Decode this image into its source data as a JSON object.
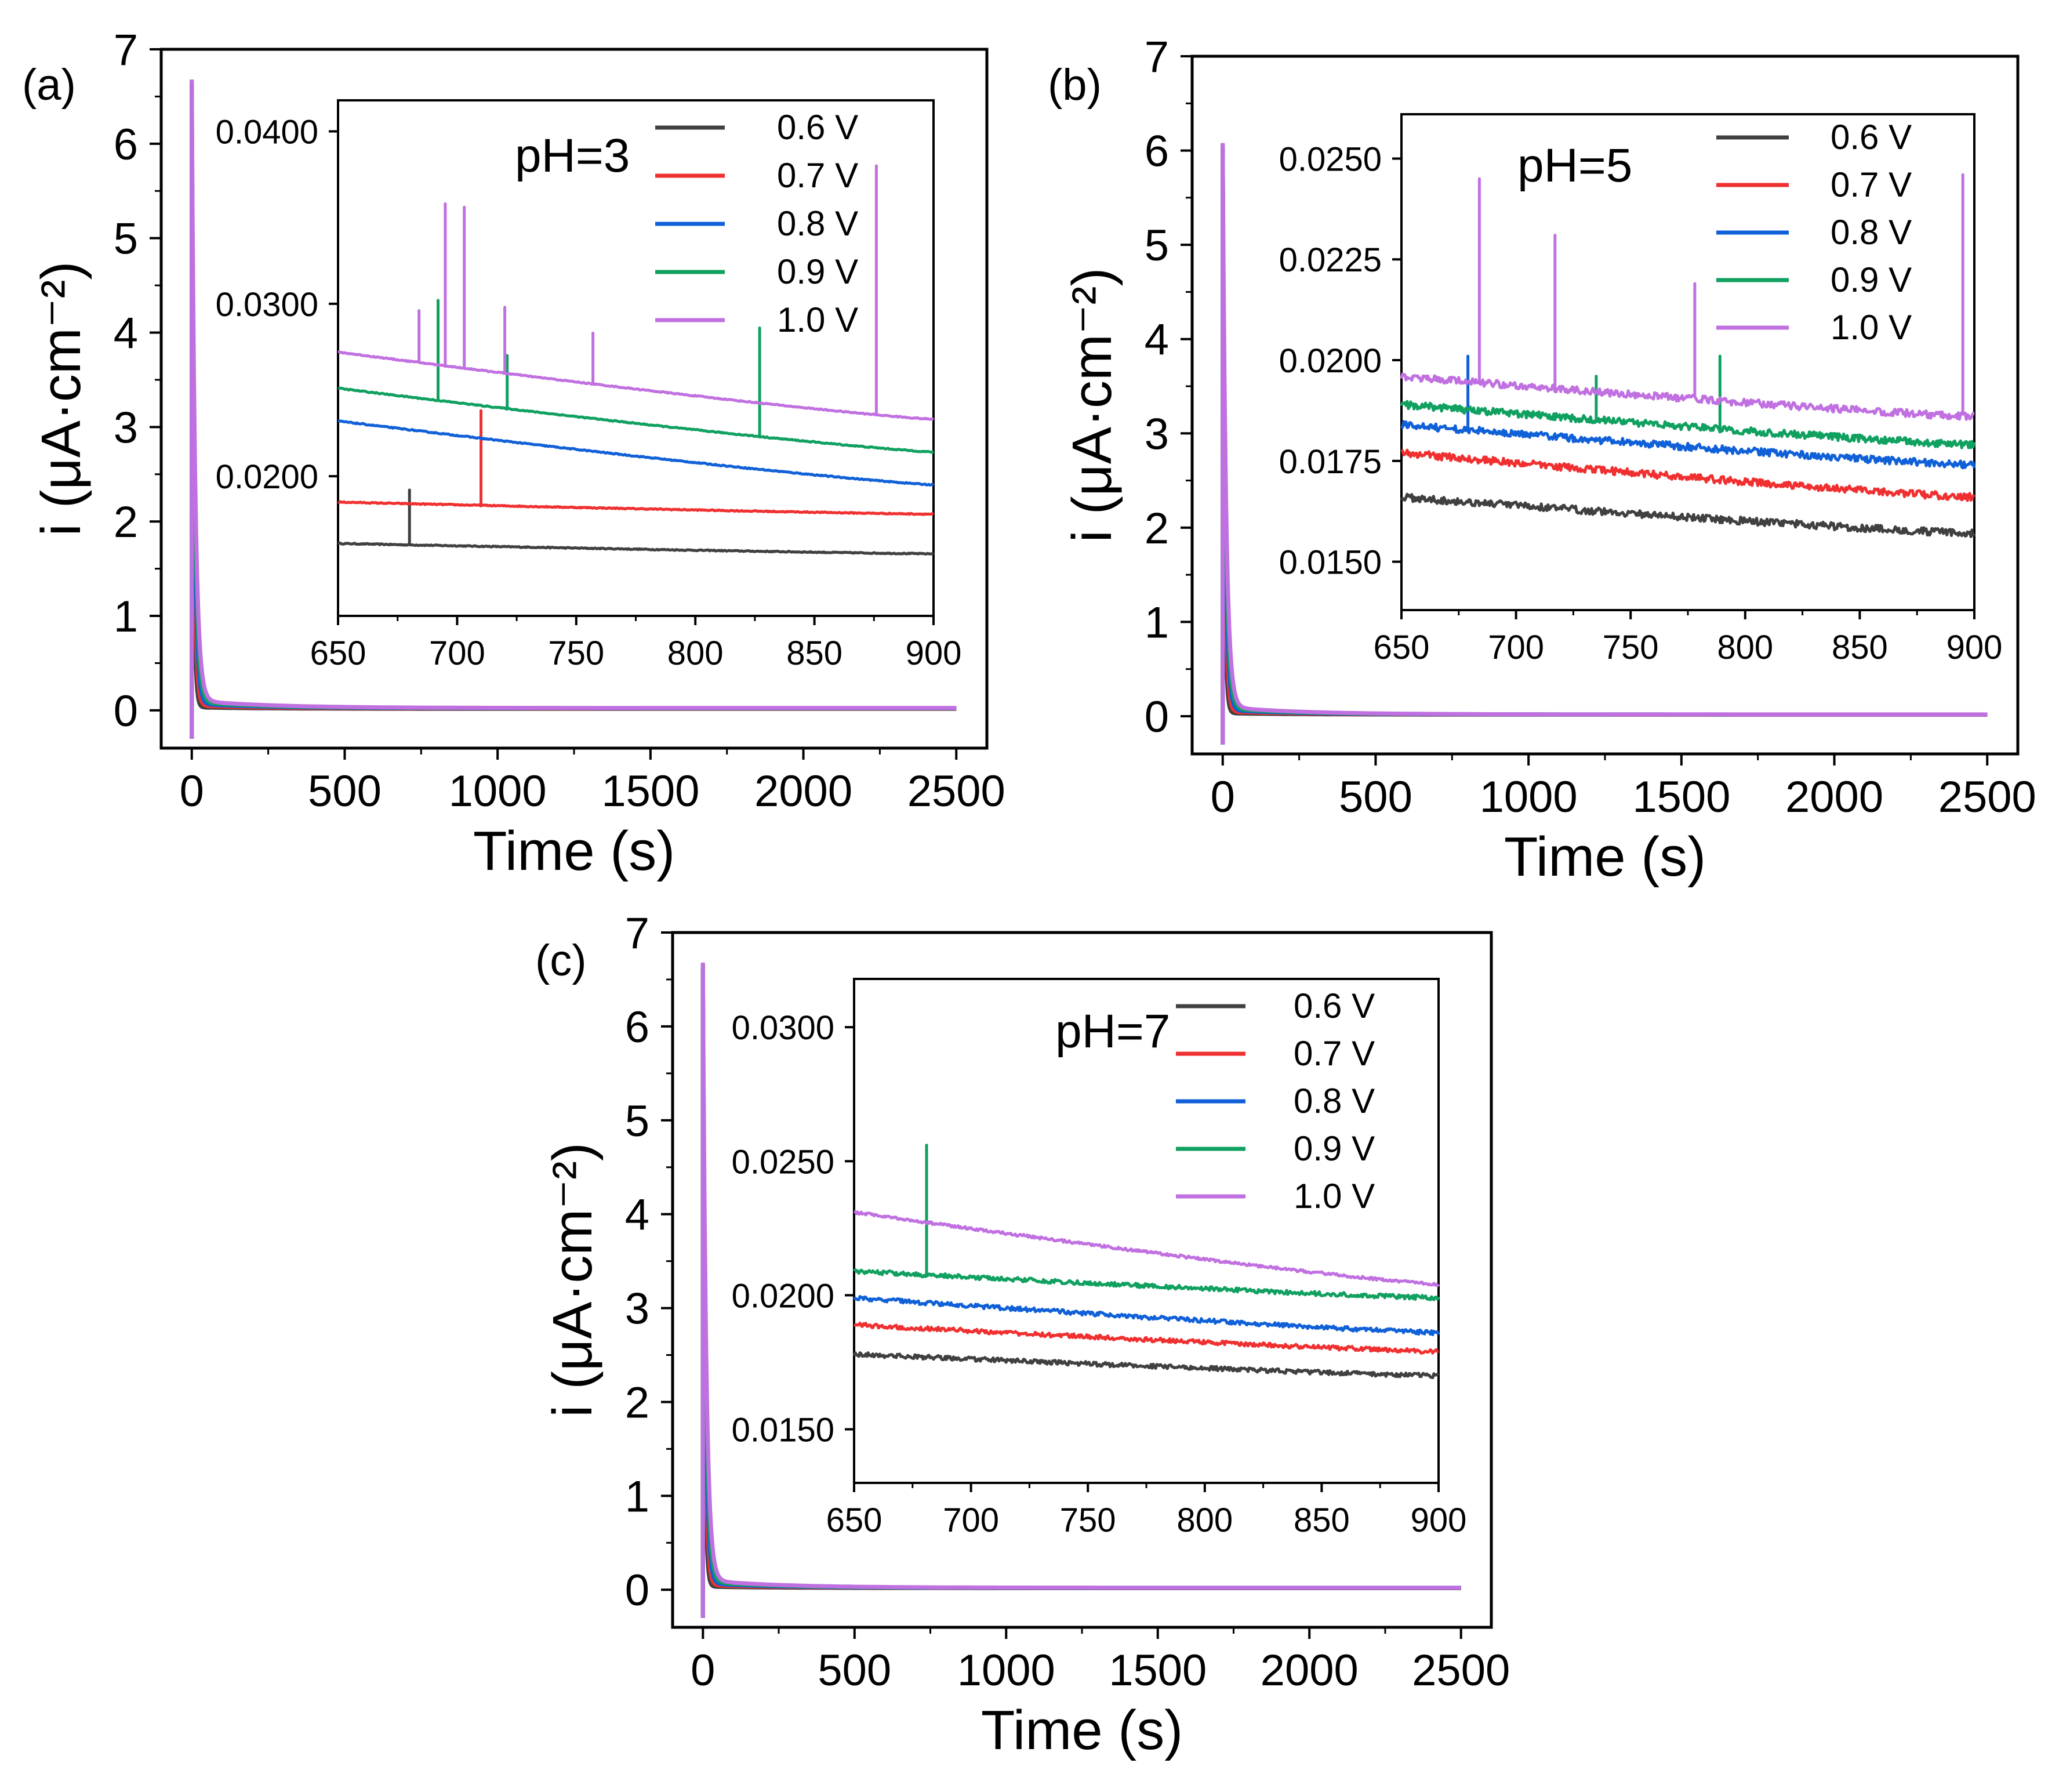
{
  "legend_colors": [
    "#404040",
    "#f03030",
    "#1060d8",
    "#10a060",
    "#c070e0"
  ],
  "chart_data": [
    {
      "panel": "(a)",
      "type": "line",
      "xlabel": "Time (s)",
      "ylabel": "i (μA·cm⁻²)",
      "xlim": [
        -100,
        2600
      ],
      "ylim": [
        -0.4,
        7
      ],
      "xticks": [
        "0",
        "500",
        "1000",
        "1500",
        "2000",
        "2500"
      ],
      "yticks": [
        "0",
        "1",
        "2",
        "3",
        "4",
        "5",
        "6",
        "7"
      ],
      "peak": 6.6,
      "inset": {
        "title": "pH=3",
        "xlim": [
          650,
          900
        ],
        "ylim": [
          0.0119,
          0.0418
        ],
        "xticks": [
          "650",
          "700",
          "750",
          "800",
          "850",
          "900"
        ],
        "yticks": [
          {
            "v": 0.02,
            "t": "0.0200"
          },
          {
            "v": 0.03,
            "t": "0.0300"
          },
          {
            "v": 0.04,
            "t": "0.0400"
          }
        ],
        "series": [
          {
            "name": "0.6 V",
            "start": 0.0161,
            "end": 0.0155,
            "noise": 3e-05,
            "spikes": [
              [
                680,
                0.0192
              ]
            ]
          },
          {
            "name": "0.7 V",
            "start": 0.0185,
            "end": 0.0178,
            "noise": 3e-05,
            "spikes": [
              [
                710,
                0.0238
              ]
            ]
          },
          {
            "name": "0.8 V",
            "start": 0.0232,
            "end": 0.0195,
            "noise": 3e-05,
            "spikes": []
          },
          {
            "name": "0.9 V",
            "start": 0.0251,
            "end": 0.0214,
            "noise": 3e-05,
            "spikes": [
              [
                692,
                0.0302
              ],
              [
                721,
                0.027
              ],
              [
                827,
                0.0286
              ]
            ]
          },
          {
            "name": "1.0 V",
            "start": 0.0272,
            "end": 0.0233,
            "noise": 3e-05,
            "spikes": [
              [
                684,
                0.0296
              ],
              [
                695,
                0.0358
              ],
              [
                703,
                0.0356
              ],
              [
                720,
                0.0298
              ],
              [
                757,
                0.0283
              ],
              [
                876,
                0.038
              ]
            ]
          }
        ]
      }
    },
    {
      "panel": "(b)",
      "type": "line",
      "xlabel": "Time (s)",
      "ylabel": "i (μA·cm⁻²)",
      "xlim": [
        -100,
        2600
      ],
      "ylim": [
        -0.4,
        7
      ],
      "xticks": [
        "0",
        "500",
        "1000",
        "1500",
        "2000",
        "2500"
      ],
      "yticks": [
        "0",
        "1",
        "2",
        "3",
        "4",
        "5",
        "6",
        "7"
      ],
      "peak": 6.0,
      "inset": {
        "title": "pH=5",
        "xlim": [
          650,
          900
        ],
        "ylim": [
          0.0138,
          0.0261
        ],
        "xticks": [
          "650",
          "700",
          "750",
          "800",
          "850",
          "900"
        ],
        "yticks": [
          {
            "v": 0.015,
            "t": "0.0150"
          },
          {
            "v": 0.0175,
            "t": "0.0175"
          },
          {
            "v": 0.02,
            "t": "0.0200"
          },
          {
            "v": 0.0225,
            "t": "0.0225"
          },
          {
            "v": 0.025,
            "t": "0.0250"
          }
        ],
        "series": [
          {
            "name": "0.6 V",
            "start": 0.0166,
            "end": 0.0157,
            "noise": 9e-05,
            "spikes": []
          },
          {
            "name": "0.7 V",
            "start": 0.0177,
            "end": 0.0166,
            "noise": 9e-05,
            "spikes": []
          },
          {
            "name": "0.8 V",
            "start": 0.0184,
            "end": 0.0174,
            "noise": 9e-05,
            "spikes": [
              [
                679,
                0.0201
              ]
            ]
          },
          {
            "name": "0.9 V",
            "start": 0.0189,
            "end": 0.0179,
            "noise": 9e-05,
            "spikes": [
              [
                735,
                0.0196
              ],
              [
                789,
                0.0201
              ]
            ]
          },
          {
            "name": "1.0 V",
            "start": 0.0196,
            "end": 0.0186,
            "noise": 9e-05,
            "spikes": [
              [
                684,
                0.0245
              ],
              [
                717,
                0.0231
              ],
              [
                778,
                0.0219
              ],
              [
                895,
                0.0246
              ]
            ]
          }
        ]
      }
    },
    {
      "panel": "(c)",
      "type": "line",
      "xlabel": "Time (s)",
      "ylabel": "i (μA·cm⁻²)",
      "xlim": [
        -100,
        2600
      ],
      "ylim": [
        -0.4,
        7
      ],
      "xticks": [
        "0",
        "500",
        "1000",
        "1500",
        "2000",
        "2500"
      ],
      "yticks": [
        "0",
        "1",
        "2",
        "3",
        "4",
        "5",
        "6",
        "7"
      ],
      "peak": 6.6,
      "inset": {
        "title": "pH=7",
        "xlim": [
          650,
          900
        ],
        "ylim": [
          0.013,
          0.0318
        ],
        "xticks": [
          "650",
          "700",
          "750",
          "800",
          "850",
          "900"
        ],
        "yticks": [
          {
            "v": 0.015,
            "t": "0.0150"
          },
          {
            "v": 0.02,
            "t": "0.0200"
          },
          {
            "v": 0.025,
            "t": "0.0250"
          },
          {
            "v": 0.03,
            "t": "0.0300"
          }
        ],
        "series": [
          {
            "name": "0.6 V",
            "start": 0.0178,
            "end": 0.017,
            "noise": 8e-05,
            "spikes": []
          },
          {
            "name": "0.7 V",
            "start": 0.0189,
            "end": 0.0179,
            "noise": 8e-05,
            "spikes": []
          },
          {
            "name": "0.8 V",
            "start": 0.0199,
            "end": 0.0186,
            "noise": 8e-05,
            "spikes": []
          },
          {
            "name": "0.9 V",
            "start": 0.0209,
            "end": 0.0199,
            "noise": 8e-05,
            "spikes": [
              [
                681,
                0.0256
              ]
            ]
          },
          {
            "name": "1.0 V",
            "start": 0.0231,
            "end": 0.0204,
            "noise": 5e-05,
            "spikes": []
          }
        ]
      }
    }
  ]
}
